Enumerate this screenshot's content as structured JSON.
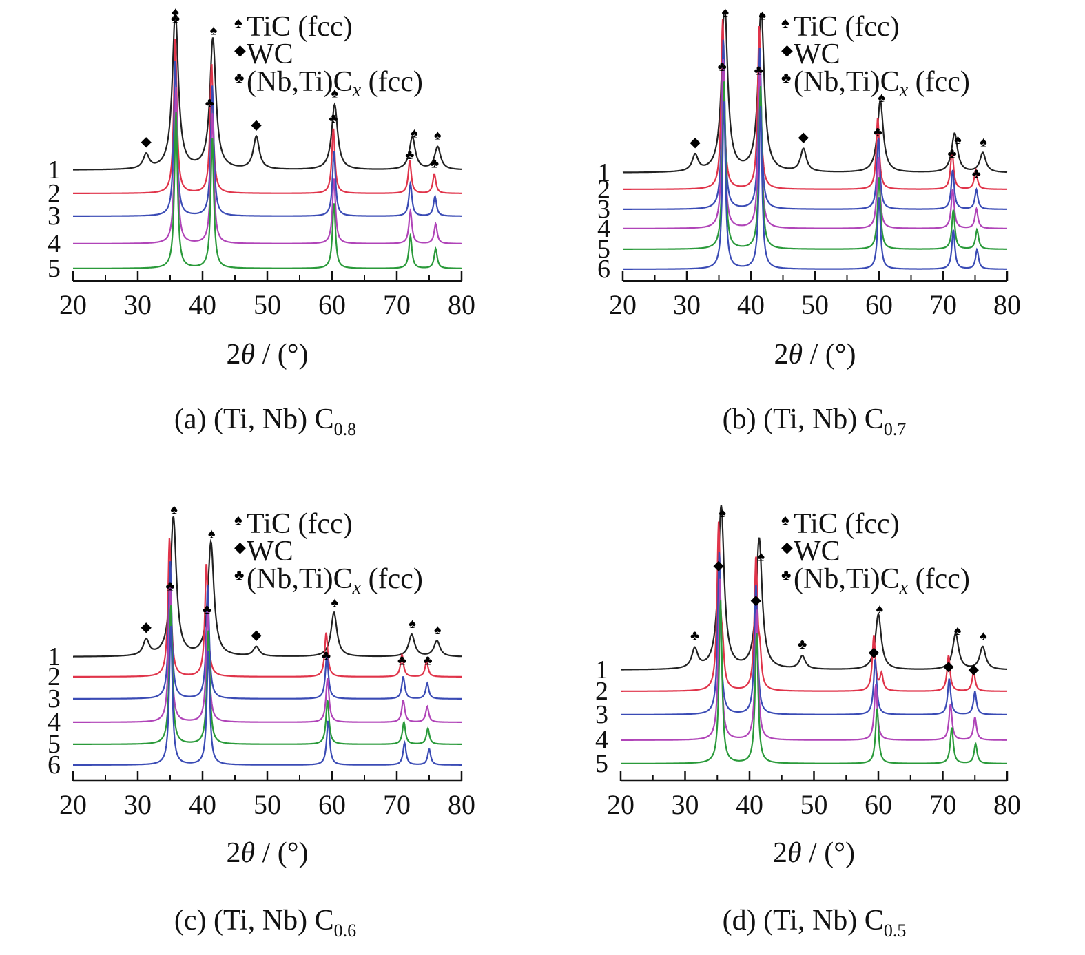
{
  "figure": {
    "panels": [
      {
        "id": "a",
        "caption_main": "(a) (Ti, Nb) C",
        "caption_sub": "0.8"
      },
      {
        "id": "b",
        "caption_main": "(b) (Ti, Nb) C",
        "caption_sub": "0.7"
      },
      {
        "id": "c",
        "caption_main": "(c) (Ti, Nb) C",
        "caption_sub": "0.6"
      },
      {
        "id": "d",
        "caption_main": "(d) (Ti, Nb) C",
        "caption_sub": "0.5"
      }
    ],
    "legend": {
      "tic_symbol": "♠",
      "tic_label": "TiC (fcc)",
      "wc_symbol": "◆",
      "wc_label": "WC",
      "nbtic_symbol": "♣",
      "nbtic_label_pre": "(Nb,Ti)C",
      "nbtic_label_sub": "x",
      "nbtic_label_post": " (fcc)"
    },
    "xlabel_pre": "2",
    "xlabel_theta": "θ",
    "xlabel_post": " / (°)"
  },
  "colors": {
    "1": "#222222",
    "2": "#e0344a",
    "3": "#3a4bb5",
    "4": "#b044b8",
    "5": "#2a9a3a",
    "6": "#3a4bb5"
  },
  "chart_data": [
    {
      "type": "line",
      "panel": "a",
      "xlim": [
        20,
        80
      ],
      "xticks": [
        20,
        30,
        40,
        50,
        60,
        70,
        80
      ],
      "series": [
        {
          "name": "1",
          "peaks": [
            [
              31.3,
              0.22
            ],
            [
              35.8,
              2.4
            ],
            [
              41.6,
              2.0
            ],
            [
              48.3,
              0.5
            ],
            [
              60.4,
              1.0
            ],
            [
              72.4,
              0.5
            ],
            [
              76.3,
              0.35
            ]
          ]
        },
        {
          "name": "2",
          "peaks": [
            [
              35.8,
              2.4
            ],
            [
              41.4,
              2.0
            ],
            [
              60.2,
              1.0
            ],
            [
              72.0,
              0.5
            ],
            [
              75.8,
              0.3
            ]
          ]
        },
        {
          "name": "3",
          "peaks": [
            [
              35.8,
              2.4
            ],
            [
              41.5,
              2.0
            ],
            [
              60.3,
              1.0
            ],
            [
              72.1,
              0.5
            ],
            [
              75.9,
              0.3
            ]
          ]
        },
        {
          "name": "4",
          "peaks": [
            [
              35.9,
              2.4
            ],
            [
              41.5,
              2.0
            ],
            [
              60.3,
              1.0
            ],
            [
              72.1,
              0.5
            ],
            [
              76.0,
              0.3
            ]
          ]
        },
        {
          "name": "5",
          "peaks": [
            [
              35.9,
              2.4
            ],
            [
              41.5,
              2.0
            ],
            [
              60.3,
              1.0
            ],
            [
              72.1,
              0.5
            ],
            [
              76.0,
              0.3
            ]
          ]
        }
      ],
      "annotations": [
        {
          "symbol": "tic",
          "x": 35.8
        },
        {
          "symbol": "nbtic",
          "x": 35.8
        },
        {
          "symbol": "tic",
          "x": 41.7
        },
        {
          "symbol": "nbtic",
          "x": 41.1
        },
        {
          "symbol": "wc",
          "x": 31.3
        },
        {
          "symbol": "wc",
          "x": 48.3
        },
        {
          "symbol": "tic",
          "x": 60.4
        },
        {
          "symbol": "nbtic",
          "x": 60.2
        },
        {
          "symbol": "tic",
          "x": 72.7
        },
        {
          "symbol": "nbtic",
          "x": 72.0
        },
        {
          "symbol": "tic",
          "x": 76.3
        },
        {
          "symbol": "nbtic",
          "x": 75.8
        }
      ]
    },
    {
      "type": "line",
      "panel": "b",
      "xlim": [
        20,
        80
      ],
      "xticks": [
        20,
        30,
        40,
        50,
        60,
        70,
        80
      ],
      "series": [
        {
          "name": "1",
          "peaks": [
            [
              31.3,
              0.25
            ],
            [
              35.9,
              2.6
            ],
            [
              41.6,
              2.5
            ],
            [
              48.2,
              0.35
            ],
            [
              60.2,
              1.1
            ],
            [
              71.8,
              0.6
            ],
            [
              76.2,
              0.3
            ]
          ]
        },
        {
          "name": "2",
          "peaks": [
            [
              35.6,
              2.6
            ],
            [
              41.3,
              2.5
            ],
            [
              59.8,
              1.1
            ],
            [
              71.4,
              0.6
            ],
            [
              75.1,
              0.3
            ]
          ]
        },
        {
          "name": "3",
          "peaks": [
            [
              35.7,
              2.6
            ],
            [
              41.4,
              2.5
            ],
            [
              59.9,
              1.1
            ],
            [
              71.5,
              0.6
            ],
            [
              75.2,
              0.3
            ]
          ]
        },
        {
          "name": "4",
          "peaks": [
            [
              35.7,
              2.6
            ],
            [
              41.4,
              2.5
            ],
            [
              59.9,
              1.1
            ],
            [
              71.5,
              0.6
            ],
            [
              75.2,
              0.3
            ]
          ]
        },
        {
          "name": "5",
          "peaks": [
            [
              35.8,
              2.6
            ],
            [
              41.5,
              2.5
            ],
            [
              60.0,
              1.1
            ],
            [
              71.6,
              0.6
            ],
            [
              75.3,
              0.3
            ]
          ]
        },
        {
          "name": "6",
          "peaks": [
            [
              35.8,
              2.6
            ],
            [
              41.5,
              2.5
            ],
            [
              60.0,
              1.1
            ],
            [
              71.6,
              0.6
            ],
            [
              75.3,
              0.3
            ]
          ]
        }
      ],
      "annotations": [
        {
          "symbol": "tic",
          "x": 36.0
        },
        {
          "symbol": "nbtic",
          "x": 35.5
        },
        {
          "symbol": "tic",
          "x": 41.8
        },
        {
          "symbol": "nbtic",
          "x": 41.2
        },
        {
          "symbol": "wc",
          "x": 31.3
        },
        {
          "symbol": "wc",
          "x": 48.2
        },
        {
          "symbol": "tic",
          "x": 60.4
        },
        {
          "symbol": "nbtic",
          "x": 59.8
        },
        {
          "symbol": "tic",
          "x": 72.3
        },
        {
          "symbol": "nbtic",
          "x": 71.4
        },
        {
          "symbol": "tic",
          "x": 76.3
        },
        {
          "symbol": "nbtic",
          "x": 75.2
        }
      ]
    },
    {
      "type": "line",
      "panel": "c",
      "xlim": [
        20,
        80
      ],
      "xticks": [
        20,
        30,
        40,
        50,
        60,
        70,
        80
      ],
      "series": [
        {
          "name": "1",
          "peaks": [
            [
              31.3,
              0.25
            ],
            [
              35.5,
              2.2
            ],
            [
              41.3,
              1.8
            ],
            [
              48.3,
              0.15
            ],
            [
              60.3,
              0.7
            ],
            [
              72.3,
              0.35
            ],
            [
              76.2,
              0.25
            ]
          ]
        },
        {
          "name": "2",
          "peaks": [
            [
              34.9,
              2.2
            ],
            [
              40.6,
              1.8
            ],
            [
              59.1,
              0.7
            ],
            [
              70.8,
              0.35
            ],
            [
              74.6,
              0.25
            ]
          ]
        },
        {
          "name": "3",
          "peaks": [
            [
              35.0,
              2.2
            ],
            [
              40.8,
              1.8
            ],
            [
              59.2,
              0.7
            ],
            [
              71.0,
              0.35
            ],
            [
              74.7,
              0.25
            ]
          ]
        },
        {
          "name": "4",
          "peaks": [
            [
              35.0,
              2.2
            ],
            [
              40.8,
              1.8
            ],
            [
              59.3,
              0.7
            ],
            [
              71.0,
              0.35
            ],
            [
              74.7,
              0.25
            ]
          ]
        },
        {
          "name": "5",
          "peaks": [
            [
              35.1,
              2.2
            ],
            [
              40.9,
              1.8
            ],
            [
              59.3,
              0.7
            ],
            [
              71.1,
              0.35
            ],
            [
              74.8,
              0.25
            ]
          ]
        },
        {
          "name": "6",
          "peaks": [
            [
              35.1,
              2.2
            ],
            [
              40.9,
              1.8
            ],
            [
              59.4,
              0.7
            ],
            [
              71.2,
              0.35
            ],
            [
              75.0,
              0.25
            ]
          ]
        }
      ],
      "annotations": [
        {
          "symbol": "tic",
          "x": 35.6
        },
        {
          "symbol": "nbtic",
          "x": 35.0
        },
        {
          "symbol": "tic",
          "x": 41.4
        },
        {
          "symbol": "nbtic",
          "x": 40.7
        },
        {
          "symbol": "wc",
          "x": 31.3
        },
        {
          "symbol": "wc",
          "x": 48.3
        },
        {
          "symbol": "tic",
          "x": 60.4
        },
        {
          "symbol": "nbtic",
          "x": 59.1
        },
        {
          "symbol": "tic",
          "x": 72.4
        },
        {
          "symbol": "nbtic",
          "x": 70.8
        },
        {
          "symbol": "tic",
          "x": 76.3
        },
        {
          "symbol": "nbtic",
          "x": 74.8
        }
      ]
    },
    {
      "type": "line",
      "panel": "d",
      "xlim": [
        20,
        80
      ],
      "xticks": [
        20,
        30,
        40,
        50,
        60,
        70,
        80
      ],
      "series": [
        {
          "name": "1",
          "peaks": [
            [
              31.5,
              0.3
            ],
            [
              35.6,
              2.5
            ],
            [
              41.5,
              2.0
            ],
            [
              48.2,
              0.2
            ],
            [
              60.0,
              0.85
            ],
            [
              72.0,
              0.55
            ],
            [
              76.2,
              0.35
            ]
          ]
        },
        {
          "name": "2",
          "peaks": [
            [
              35.2,
              2.5
            ],
            [
              35.8,
              0.5
            ],
            [
              41.0,
              2.0
            ],
            [
              41.6,
              0.45
            ],
            [
              59.3,
              0.85
            ],
            [
              60.5,
              0.25
            ],
            [
              70.9,
              0.55
            ],
            [
              74.8,
              0.3
            ]
          ]
        },
        {
          "name": "3",
          "peaks": [
            [
              35.3,
              2.5
            ],
            [
              41.0,
              2.0
            ],
            [
              59.5,
              0.85
            ],
            [
              71.0,
              0.55
            ],
            [
              75.0,
              0.35
            ]
          ]
        },
        {
          "name": "4",
          "peaks": [
            [
              35.4,
              2.5
            ],
            [
              41.1,
              2.0
            ],
            [
              59.6,
              0.85
            ],
            [
              71.2,
              0.55
            ],
            [
              75.0,
              0.35
            ]
          ]
        },
        {
          "name": "5",
          "peaks": [
            [
              35.5,
              2.5
            ],
            [
              41.1,
              2.0
            ],
            [
              59.8,
              0.85
            ],
            [
              71.4,
              0.55
            ],
            [
              75.1,
              0.3
            ]
          ]
        }
      ],
      "annotations": [
        {
          "symbol": "tic",
          "x": 35.8
        },
        {
          "symbol": "wc",
          "x": 35.2
        },
        {
          "symbol": "tic",
          "x": 41.8
        },
        {
          "symbol": "wc",
          "x": 41.0
        },
        {
          "symbol": "nbtic",
          "x": 31.5
        },
        {
          "symbol": "nbtic",
          "x": 48.2
        },
        {
          "symbol": "tic",
          "x": 60.2
        },
        {
          "symbol": "wc",
          "x": 59.3
        },
        {
          "symbol": "tic",
          "x": 72.3
        },
        {
          "symbol": "wc",
          "x": 70.9
        },
        {
          "symbol": "tic",
          "x": 76.3
        },
        {
          "symbol": "wc",
          "x": 74.8
        }
      ]
    }
  ]
}
